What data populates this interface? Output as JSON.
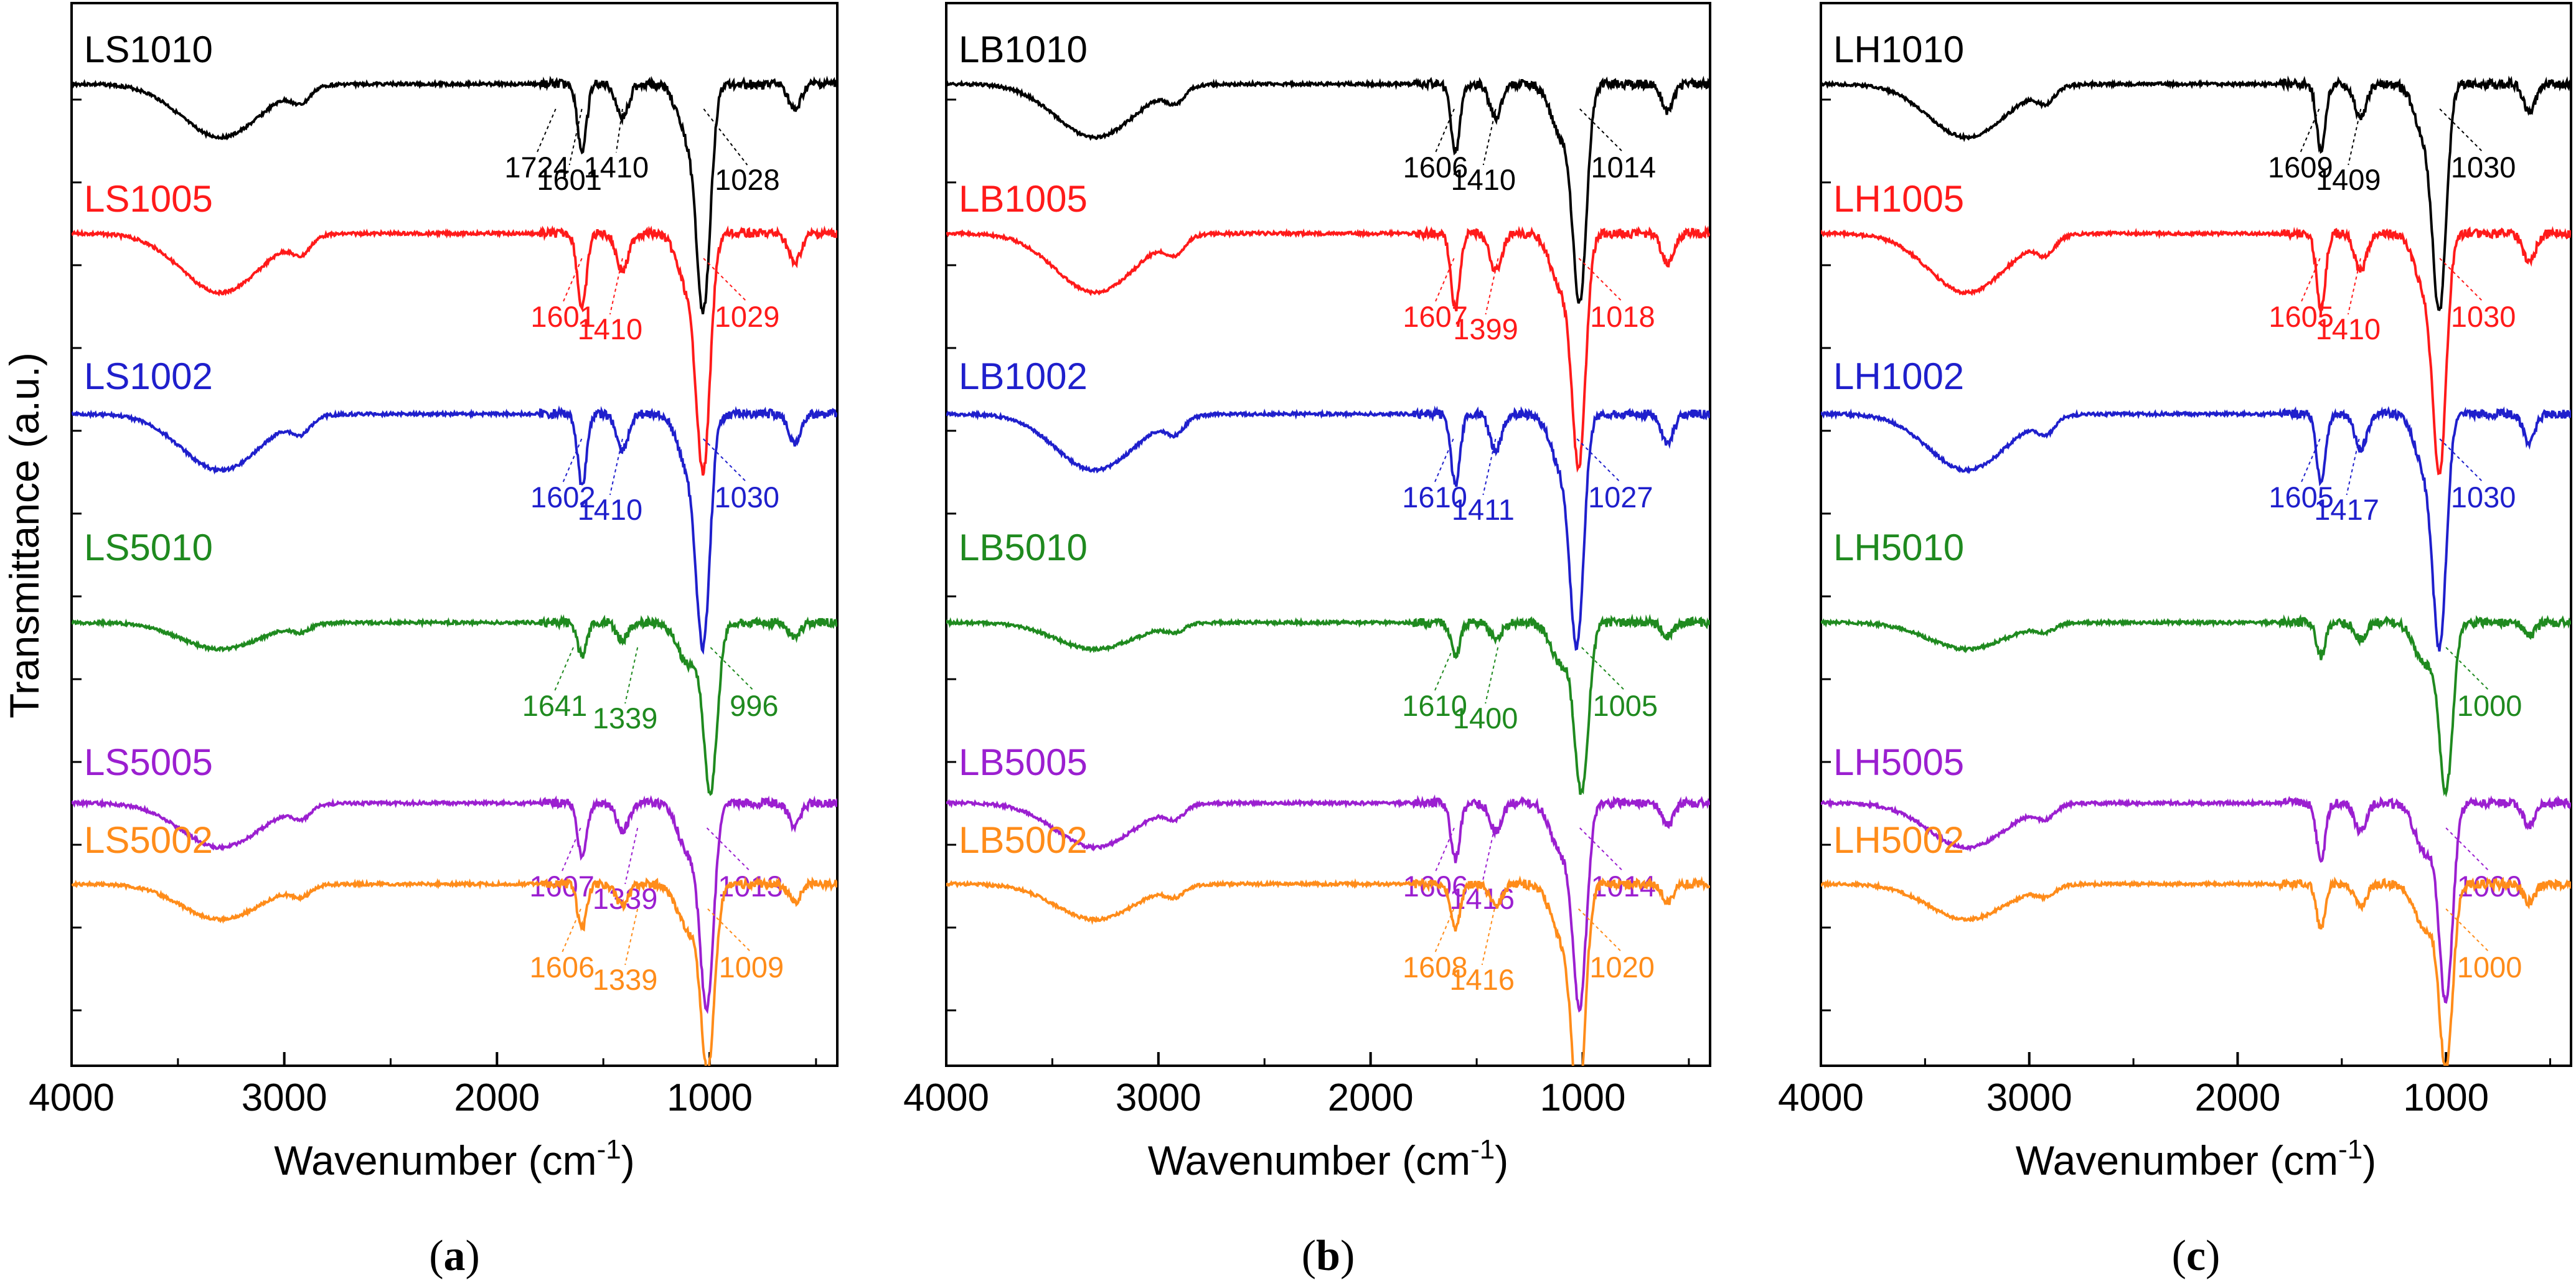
{
  "colors": {
    "black": "#000000",
    "red": "#ff1a1a",
    "blue": "#1f1fcc",
    "green": "#1f8a1f",
    "purple": "#9b1fd0",
    "orange": "#ff8c1a"
  },
  "ylabel": "Transmittance (a.u.)",
  "chart_data": [
    {
      "type": "line",
      "panel": "a",
      "caption_open": "(",
      "caption_letter": "a",
      "caption_close": ")",
      "xlabel": "Wavenumber (cm",
      "xlabel_sup": "-1",
      "xlabel_close": ")",
      "xlim": [
        4000,
        400
      ],
      "xticks": [
        4000,
        3000,
        2000,
        1000
      ],
      "series": [
        {
          "name": "LS1010",
          "color": "black",
          "peaks": [
            {
              "wn": 1724,
              "label": "1724"
            },
            {
              "wn": 1601,
              "label": "1601"
            },
            {
              "wn": 1410,
              "label": "1410"
            },
            {
              "wn": 1028,
              "label": "1028"
            }
          ]
        },
        {
          "name": "LS1005",
          "color": "red",
          "peaks": [
            {
              "wn": 1601,
              "label": "1601"
            },
            {
              "wn": 1410,
              "label": "1410"
            },
            {
              "wn": 1029,
              "label": "1029"
            }
          ]
        },
        {
          "name": "LS1002",
          "color": "blue",
          "peaks": [
            {
              "wn": 1602,
              "label": "1602"
            },
            {
              "wn": 1410,
              "label": "1410"
            },
            {
              "wn": 1030,
              "label": "1030"
            }
          ]
        },
        {
          "name": "LS5010",
          "color": "green",
          "peaks": [
            {
              "wn": 1641,
              "label": "1641"
            },
            {
              "wn": 1339,
              "label": "1339"
            },
            {
              "wn": 996,
              "label": "996"
            }
          ]
        },
        {
          "name": "LS5005",
          "color": "purple",
          "peaks": [
            {
              "wn": 1607,
              "label": "1607"
            },
            {
              "wn": 1339,
              "label": "1339"
            },
            {
              "wn": 1013,
              "label": "1013"
            }
          ]
        },
        {
          "name": "LS5002",
          "color": "orange",
          "peaks": [
            {
              "wn": 1606,
              "label": "1606"
            },
            {
              "wn": 1339,
              "label": "1339"
            },
            {
              "wn": 1009,
              "label": "1009"
            }
          ]
        }
      ]
    },
    {
      "type": "line",
      "panel": "b",
      "caption_open": "(",
      "caption_letter": "b",
      "caption_close": ")",
      "xlabel": "Wavenumber (cm",
      "xlabel_sup": "-1",
      "xlabel_close": ")",
      "xlim": [
        4000,
        400
      ],
      "xticks": [
        4000,
        3000,
        2000,
        1000
      ],
      "series": [
        {
          "name": "LB1010",
          "color": "black",
          "peaks": [
            {
              "wn": 1606,
              "label": "1606"
            },
            {
              "wn": 1410,
              "label": "1410"
            },
            {
              "wn": 1014,
              "label": "1014"
            }
          ]
        },
        {
          "name": "LB1005",
          "color": "red",
          "peaks": [
            {
              "wn": 1607,
              "label": "1607"
            },
            {
              "wn": 1399,
              "label": "1399"
            },
            {
              "wn": 1018,
              "label": "1018"
            }
          ]
        },
        {
          "name": "LB1002",
          "color": "blue",
          "peaks": [
            {
              "wn": 1610,
              "label": "1610"
            },
            {
              "wn": 1411,
              "label": "1411"
            },
            {
              "wn": 1027,
              "label": "1027"
            }
          ]
        },
        {
          "name": "LB5010",
          "color": "green",
          "peaks": [
            {
              "wn": 1610,
              "label": "1610"
            },
            {
              "wn": 1400,
              "label": "1400"
            },
            {
              "wn": 1005,
              "label": "1005"
            }
          ]
        },
        {
          "name": "LB5005",
          "color": "purple",
          "peaks": [
            {
              "wn": 1606,
              "label": "1606"
            },
            {
              "wn": 1416,
              "label": "1416"
            },
            {
              "wn": 1014,
              "label": "1014"
            }
          ]
        },
        {
          "name": "LB5002",
          "color": "orange",
          "peaks": [
            {
              "wn": 1608,
              "label": "1608"
            },
            {
              "wn": 1416,
              "label": "1416"
            },
            {
              "wn": 1020,
              "label": "1020"
            }
          ]
        }
      ]
    },
    {
      "type": "line",
      "panel": "c",
      "caption_open": "(",
      "caption_letter": "c",
      "caption_close": ")",
      "xlabel": "Wavenumber (cm",
      "xlabel_sup": "-1",
      "xlabel_close": ")",
      "xlim": [
        4000,
        400
      ],
      "xticks": [
        4000,
        3000,
        2000,
        1000
      ],
      "series": [
        {
          "name": "LH1010",
          "color": "black",
          "peaks": [
            {
              "wn": 1609,
              "label": "1609"
            },
            {
              "wn": 1409,
              "label": "1409"
            },
            {
              "wn": 1030,
              "label": "1030"
            }
          ]
        },
        {
          "name": "LH1005",
          "color": "red",
          "peaks": [
            {
              "wn": 1605,
              "label": "1605"
            },
            {
              "wn": 1410,
              "label": "1410"
            },
            {
              "wn": 1030,
              "label": "1030"
            }
          ]
        },
        {
          "name": "LH1002",
          "color": "blue",
          "peaks": [
            {
              "wn": 1605,
              "label": "1605"
            },
            {
              "wn": 1417,
              "label": "1417"
            },
            {
              "wn": 1030,
              "label": "1030"
            }
          ]
        },
        {
          "name": "LH5010",
          "color": "green",
          "peaks": [
            {
              "wn": 1000,
              "label": "1000"
            }
          ]
        },
        {
          "name": "LH5005",
          "color": "purple",
          "peaks": [
            {
              "wn": 1000,
              "label": "1000"
            }
          ]
        },
        {
          "name": "LH5002",
          "color": "orange",
          "peaks": [
            {
              "wn": 1000,
              "label": "1000"
            }
          ]
        }
      ]
    }
  ]
}
